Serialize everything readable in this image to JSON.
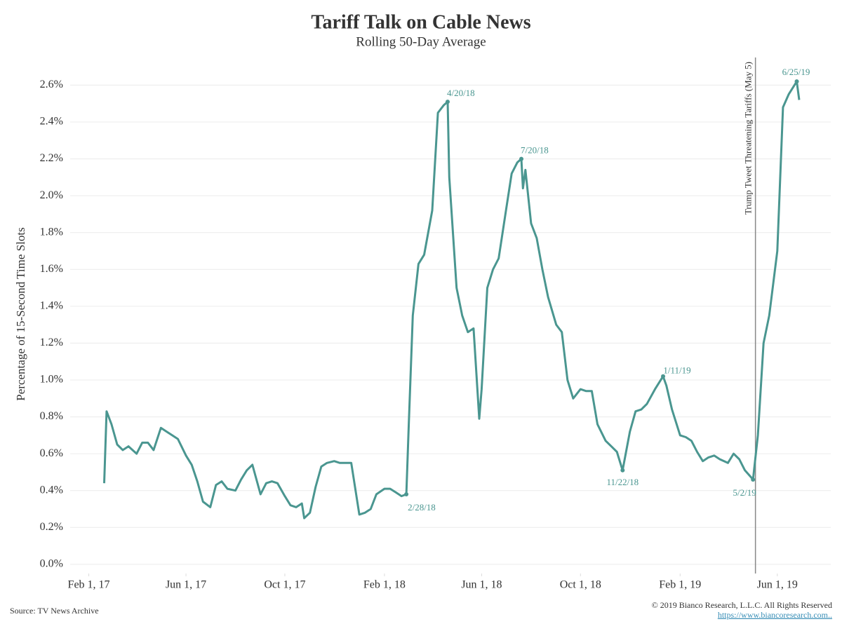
{
  "chart_data": {
    "type": "line",
    "title": "Tariff Talk on Cable News",
    "subtitle": "Rolling 50-Day Average",
    "y_label": "Percentage of 15-Second Time Slots",
    "source": "Source: TV News Archive",
    "copyright": "© 2019 Bianco Research, L.L.C. All Rights Reserved",
    "link": "https://www.biancoresearch.com..",
    "color": "#4a9690",
    "grid": true,
    "xlim": [
      "2017-01-09",
      "2019-08-06"
    ],
    "xticks": [
      {
        "value": "2017-02-01",
        "label": "Feb 1, 17"
      },
      {
        "value": "2017-06-01",
        "label": "Jun 1, 17"
      },
      {
        "value": "2017-10-01",
        "label": "Oct 1, 17"
      },
      {
        "value": "2018-02-01",
        "label": "Feb 1, 18"
      },
      {
        "value": "2018-06-01",
        "label": "Jun 1, 18"
      },
      {
        "value": "2018-10-01",
        "label": "Oct 1, 18"
      },
      {
        "value": "2019-02-01",
        "label": "Feb 1, 19"
      },
      {
        "value": "2019-06-01",
        "label": "Jun 1, 19"
      }
    ],
    "ylim": [
      -0.05,
      2.75
    ],
    "yticks": [
      {
        "value": 0.0,
        "label": "0.0%"
      },
      {
        "value": 0.2,
        "label": "0.2%"
      },
      {
        "value": 0.4,
        "label": "0.4%"
      },
      {
        "value": 0.6,
        "label": "0.6%"
      },
      {
        "value": 0.8,
        "label": "0.8%"
      },
      {
        "value": 1.0,
        "label": "1.0%"
      },
      {
        "value": 1.2,
        "label": "1.2%"
      },
      {
        "value": 1.4,
        "label": "1.4%"
      },
      {
        "value": 1.6,
        "label": "1.6%"
      },
      {
        "value": 1.8,
        "label": "1.8%"
      },
      {
        "value": 2.0,
        "label": "2.0%"
      },
      {
        "value": 2.2,
        "label": "2.2%"
      },
      {
        "value": 2.4,
        "label": "2.4%"
      },
      {
        "value": 2.6,
        "label": "2.6%"
      }
    ],
    "x": [
      "2017-02-20",
      "2017-02-23",
      "2017-03-01",
      "2017-03-08",
      "2017-03-15",
      "2017-03-22",
      "2017-04-01",
      "2017-04-08",
      "2017-04-15",
      "2017-04-22",
      "2017-05-01",
      "2017-05-08",
      "2017-05-15",
      "2017-05-22",
      "2017-06-01",
      "2017-06-08",
      "2017-06-15",
      "2017-06-22",
      "2017-07-01",
      "2017-07-08",
      "2017-07-15",
      "2017-07-22",
      "2017-08-01",
      "2017-08-08",
      "2017-08-15",
      "2017-08-22",
      "2017-09-01",
      "2017-09-08",
      "2017-09-15",
      "2017-09-22",
      "2017-10-01",
      "2017-10-08",
      "2017-10-15",
      "2017-10-22",
      "2017-10-25",
      "2017-11-01",
      "2017-11-08",
      "2017-11-15",
      "2017-11-22",
      "2017-12-01",
      "2017-12-08",
      "2017-12-15",
      "2017-12-22",
      "2018-01-01",
      "2018-01-08",
      "2018-01-15",
      "2018-01-22",
      "2018-02-01",
      "2018-02-08",
      "2018-02-15",
      "2018-02-22",
      "2018-02-28",
      "2018-03-03",
      "2018-03-08",
      "2018-03-15",
      "2018-03-22",
      "2018-04-01",
      "2018-04-08",
      "2018-04-15",
      "2018-04-20",
      "2018-04-22",
      "2018-05-01",
      "2018-05-08",
      "2018-05-15",
      "2018-05-22",
      "2018-05-29",
      "2018-06-01",
      "2018-06-08",
      "2018-06-15",
      "2018-06-22",
      "2018-07-01",
      "2018-07-08",
      "2018-07-15",
      "2018-07-20",
      "2018-07-22",
      "2018-07-25",
      "2018-08-01",
      "2018-08-08",
      "2018-08-15",
      "2018-08-22",
      "2018-09-01",
      "2018-09-08",
      "2018-09-15",
      "2018-09-22",
      "2018-10-01",
      "2018-10-08",
      "2018-10-15",
      "2018-10-22",
      "2018-11-01",
      "2018-11-08",
      "2018-11-15",
      "2018-11-22",
      "2018-12-01",
      "2018-12-08",
      "2018-12-15",
      "2018-12-22",
      "2019-01-01",
      "2019-01-11",
      "2019-01-15",
      "2019-01-22",
      "2019-02-01",
      "2019-02-08",
      "2019-02-15",
      "2019-02-22",
      "2019-03-01",
      "2019-03-08",
      "2019-03-15",
      "2019-03-22",
      "2019-04-01",
      "2019-04-08",
      "2019-04-15",
      "2019-04-22",
      "2019-05-02",
      "2019-05-08",
      "2019-05-15",
      "2019-05-22",
      "2019-06-01",
      "2019-06-08",
      "2019-06-15",
      "2019-06-25",
      "2019-06-28"
    ],
    "values": [
      0.44,
      0.83,
      0.76,
      0.65,
      0.62,
      0.64,
      0.6,
      0.66,
      0.66,
      0.62,
      0.74,
      0.72,
      0.7,
      0.68,
      0.59,
      0.54,
      0.45,
      0.34,
      0.31,
      0.43,
      0.45,
      0.41,
      0.4,
      0.46,
      0.51,
      0.54,
      0.38,
      0.44,
      0.45,
      0.44,
      0.37,
      0.32,
      0.31,
      0.33,
      0.25,
      0.28,
      0.42,
      0.53,
      0.55,
      0.56,
      0.55,
      0.55,
      0.55,
      0.27,
      0.28,
      0.3,
      0.38,
      0.41,
      0.41,
      0.39,
      0.37,
      0.38,
      0.75,
      1.35,
      1.63,
      1.68,
      1.92,
      2.45,
      2.49,
      2.51,
      2.1,
      1.5,
      1.35,
      1.26,
      1.28,
      0.79,
      0.95,
      1.5,
      1.6,
      1.66,
      1.92,
      2.12,
      2.18,
      2.2,
      2.04,
      2.14,
      1.85,
      1.77,
      1.6,
      1.45,
      1.3,
      1.26,
      1.0,
      0.9,
      0.95,
      0.94,
      0.94,
      0.76,
      0.67,
      0.64,
      0.61,
      0.51,
      0.72,
      0.83,
      0.84,
      0.87,
      0.95,
      1.02,
      0.97,
      0.84,
      0.7,
      0.69,
      0.67,
      0.61,
      0.56,
      0.58,
      0.59,
      0.57,
      0.55,
      0.6,
      0.57,
      0.51,
      0.46,
      0.7,
      1.2,
      1.35,
      1.7,
      2.48,
      2.55,
      2.62,
      2.52
    ],
    "annotations": [
      {
        "text": "2/28/18",
        "x": "2018-02-28"
      },
      {
        "text": "4/20/18",
        "x": "2018-04-20"
      },
      {
        "text": "7/20/18",
        "x": "2018-07-20"
      },
      {
        "text": "11/22/18",
        "x": "2018-11-22"
      },
      {
        "text": "1/11/19",
        "x": "2019-01-11"
      },
      {
        "text": "5/2/19",
        "x": "2019-05-02"
      },
      {
        "text": "6/25/19",
        "x": "2019-06-25"
      }
    ],
    "event": {
      "text": "Trump Tweet Threatening Tariffs (May 5)",
      "x": "2019-05-05"
    }
  }
}
